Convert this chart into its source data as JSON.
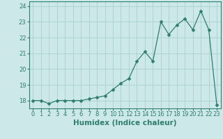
{
  "x": [
    0,
    1,
    2,
    3,
    4,
    5,
    6,
    7,
    8,
    9,
    10,
    11,
    12,
    13,
    14,
    15,
    16,
    17,
    18,
    19,
    20,
    21,
    22,
    23
  ],
  "y": [
    18.0,
    18.0,
    17.8,
    18.0,
    18.0,
    18.0,
    18.0,
    18.1,
    18.2,
    18.3,
    18.7,
    19.1,
    19.4,
    20.5,
    21.1,
    20.5,
    23.0,
    22.2,
    22.8,
    23.2,
    22.5,
    23.7,
    22.5,
    17.7
  ],
  "line_color": "#2e7d6e",
  "marker": "D",
  "marker_size": 2.5,
  "bg_color": "#cce8e8",
  "grid_color": "#aad0d0",
  "xlabel": "Humidex (Indice chaleur)",
  "xlim": [
    -0.5,
    23.5
  ],
  "ylim": [
    17.5,
    24.3
  ],
  "yticks": [
    18,
    19,
    20,
    21,
    22,
    23,
    24
  ],
  "xticks": [
    0,
    1,
    2,
    3,
    4,
    5,
    6,
    7,
    8,
    9,
    10,
    11,
    12,
    13,
    14,
    15,
    16,
    17,
    18,
    19,
    20,
    21,
    22,
    23
  ],
  "tick_fontsize": 6.0,
  "xlabel_fontsize": 7.5
}
